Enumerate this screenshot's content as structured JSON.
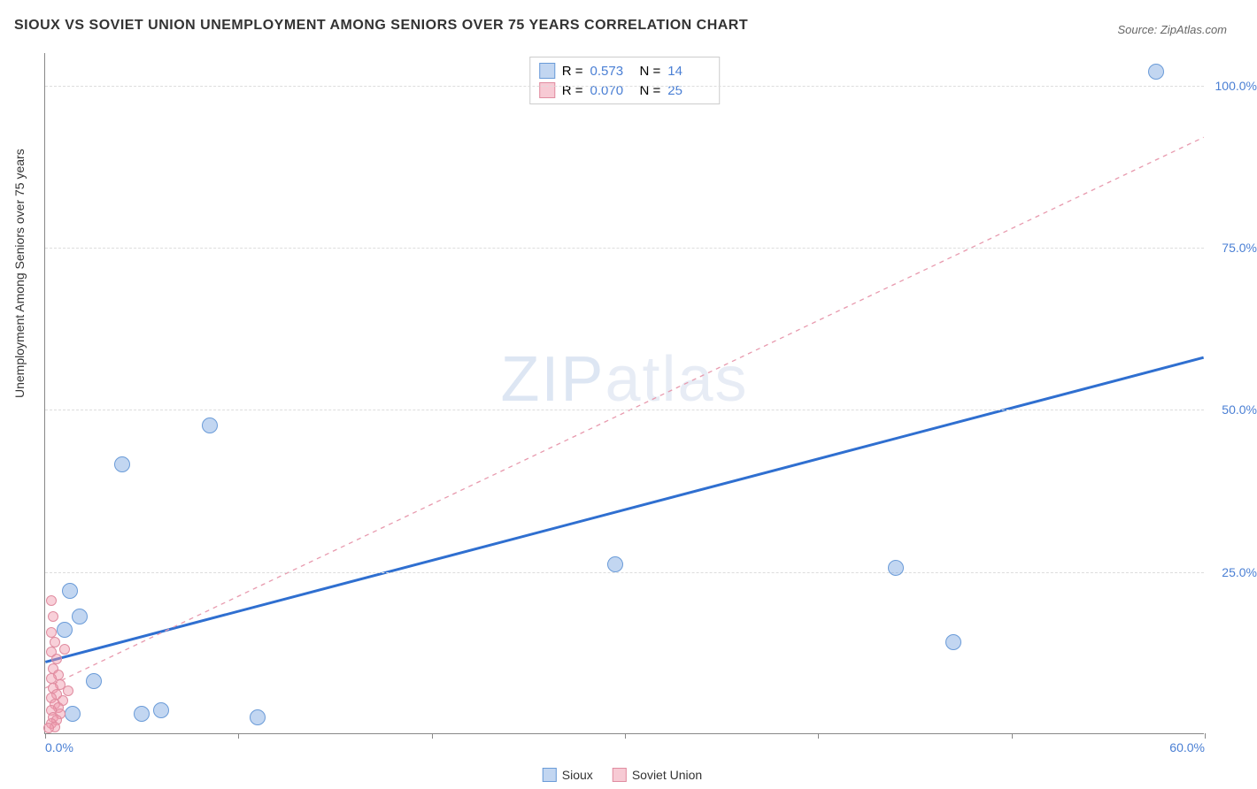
{
  "title": "SIOUX VS SOVIET UNION UNEMPLOYMENT AMONG SENIORS OVER 75 YEARS CORRELATION CHART",
  "source": "Source: ZipAtlas.com",
  "ylabel": "Unemployment Among Seniors over 75 years",
  "watermark_a": "ZIP",
  "watermark_b": "atlas",
  "chart": {
    "type": "scatter",
    "xlim": [
      0,
      60
    ],
    "ylim": [
      0,
      105
    ],
    "x_ticks": [
      0,
      10,
      20,
      30,
      40,
      50,
      60
    ],
    "x_tick_labels_shown": {
      "0": "0.0%",
      "60": "60.0%"
    },
    "y_ticks": [
      25,
      50,
      75,
      100
    ],
    "y_tick_labels": [
      "25.0%",
      "50.0%",
      "75.0%",
      "100.0%"
    ],
    "grid_color": "#dddddd",
    "axis_color": "#888888",
    "background": "#ffffff",
    "point_radius_blue": 9,
    "point_radius_pink": 6,
    "series": [
      {
        "name": "Sioux",
        "color_fill": "rgba(120,165,225,0.45)",
        "color_stroke": "#6a9bd8",
        "R": "0.573",
        "N": "14",
        "regression": {
          "x1": 0,
          "y1": 11,
          "x2": 60,
          "y2": 58,
          "stroke": "#2f6fd0",
          "width": 3,
          "dash": "none"
        },
        "points": [
          {
            "x": 57.5,
            "y": 102
          },
          {
            "x": 44.0,
            "y": 25.5
          },
          {
            "x": 47.0,
            "y": 14.0
          },
          {
            "x": 29.5,
            "y": 26.0
          },
          {
            "x": 11.0,
            "y": 2.5
          },
          {
            "x": 6.0,
            "y": 3.5
          },
          {
            "x": 5.0,
            "y": 3.0
          },
          {
            "x": 4.0,
            "y": 41.5
          },
          {
            "x": 8.5,
            "y": 47.5
          },
          {
            "x": 1.3,
            "y": 22.0
          },
          {
            "x": 1.0,
            "y": 16.0
          },
          {
            "x": 2.5,
            "y": 8.0
          },
          {
            "x": 1.4,
            "y": 3.0
          },
          {
            "x": 1.8,
            "y": 18.0
          }
        ]
      },
      {
        "name": "Soviet Union",
        "color_fill": "rgba(240,150,170,0.5)",
        "color_stroke": "#e08ca0",
        "R": "0.070",
        "N": "25",
        "regression": {
          "x1": 0,
          "y1": 7,
          "x2": 60,
          "y2": 92,
          "stroke": "#e89aae",
          "width": 1.3,
          "dash": "5,5"
        },
        "points": [
          {
            "x": 0.3,
            "y": 20.5
          },
          {
            "x": 0.4,
            "y": 18.0
          },
          {
            "x": 0.3,
            "y": 15.5
          },
          {
            "x": 0.5,
            "y": 14.0
          },
          {
            "x": 0.3,
            "y": 12.5
          },
          {
            "x": 0.6,
            "y": 11.5
          },
          {
            "x": 0.4,
            "y": 10.0
          },
          {
            "x": 0.7,
            "y": 9.0
          },
          {
            "x": 0.3,
            "y": 8.5
          },
          {
            "x": 0.8,
            "y": 7.5
          },
          {
            "x": 0.4,
            "y": 7.0
          },
          {
            "x": 0.6,
            "y": 6.0
          },
          {
            "x": 0.3,
            "y": 5.5
          },
          {
            "x": 0.9,
            "y": 5.0
          },
          {
            "x": 0.5,
            "y": 4.5
          },
          {
            "x": 0.7,
            "y": 4.0
          },
          {
            "x": 0.3,
            "y": 3.5
          },
          {
            "x": 0.8,
            "y": 3.0
          },
          {
            "x": 0.4,
            "y": 2.5
          },
          {
            "x": 0.6,
            "y": 2.0
          },
          {
            "x": 0.3,
            "y": 1.5
          },
          {
            "x": 0.5,
            "y": 1.0
          },
          {
            "x": 1.0,
            "y": 13.0
          },
          {
            "x": 1.2,
            "y": 6.5
          },
          {
            "x": 0.2,
            "y": 0.8
          }
        ]
      }
    ]
  },
  "legend_top": {
    "rows": [
      {
        "swatch": "blue",
        "r_label": "R  =",
        "r": "0.573",
        "n_label": "N  =",
        "n": "14"
      },
      {
        "swatch": "pink",
        "r_label": "R  =",
        "r": "0.070",
        "n_label": "N  =",
        "n": "25"
      }
    ]
  },
  "legend_bottom": [
    {
      "swatch": "blue",
      "label": "Sioux"
    },
    {
      "swatch": "pink",
      "label": "Soviet Union"
    }
  ]
}
